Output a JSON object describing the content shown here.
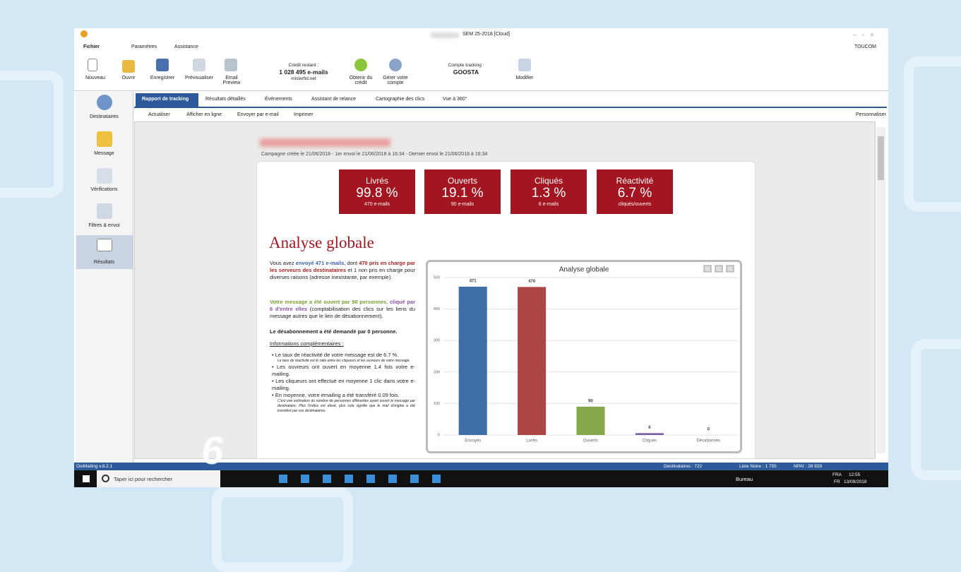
{
  "window": {
    "title": "SEM 25-2018 [Cloud]"
  },
  "menu": [
    "Fichier",
    "Paramètres",
    "Assistance"
  ],
  "user": "TOUCOM",
  "ribbon": {
    "buttons": [
      "Nouveau",
      "Ouvrir",
      "Enregistrer",
      "Prévisualiser",
      "Email Preview"
    ],
    "credit_label": "Crédit restant :",
    "credit_value": "1 028 495 e-mails",
    "credit_account": "misterfid.net",
    "actions": [
      "Obtenir du crédit",
      "Gérer votre compte"
    ],
    "tracking_label": "Compte tracking :",
    "tracking_value": "GOOSTA",
    "modify": "Modifier"
  },
  "sidebar": [
    "Destinataires",
    "Message",
    "Vérifications",
    "Filtres & envoi",
    "Résultats"
  ],
  "tabs": [
    "Rapport de tracking",
    "Résultats détaillés",
    "Événements",
    "Assistant de relance",
    "Cartographie des clics",
    "Vue à 360°"
  ],
  "toolbar": [
    "Actualiser",
    "Afficher en ligne",
    "Envoyer par e-mail",
    "Imprimer"
  ],
  "customize": "Personnaliser",
  "campaign_info": "Campagne créée le 21/06/2018 - 1er envoi le 21/06/2018 à 16:34 - Dernier envoi le 21/06/2018 à 16:34",
  "kpis": [
    {
      "label": "Livrés",
      "value": "99.8 %",
      "detail": "470 e-mails"
    },
    {
      "label": "Ouverts",
      "value": "19.1 %",
      "detail": "90 e-mails"
    },
    {
      "label": "Cliqués",
      "value": "1.3 %",
      "detail": "6 e-mails"
    },
    {
      "label": "Réactivité",
      "value": "6.7 %",
      "detail": "cliqués/ouverts"
    }
  ],
  "heading": "Analyse globale",
  "paragraphs": [
    [
      "Vous avez ",
      "envoyé 471 e-mails",
      ", dont ",
      "470 pris en charge par les serveurs des destinataires",
      " et 1 non pris en charge pour diverses raisons (adresse inexistante, par exemple)."
    ],
    [
      "Votre message a été ouvert par 90 personnes",
      ", ",
      "cliqué par 6 d'entre elles",
      " (comptabilisation des clics sur les liens du message autres que le lien de désabonnement)."
    ],
    [
      "Le désabonnement a été demandé par 0 personne."
    ]
  ],
  "info_title": "Informations complémentaires :",
  "bullets": [
    {
      "text": "Le taux de réactivité de votre message est de 6.7 %.",
      "note": "Le taux de réactivité est le ratio entre les cliqueurs et les ouvreurs de votre message."
    },
    {
      "text": "Les ouvreurs ont ouvert en moyenne 1.4 fois votre e-mailing."
    },
    {
      "text": "Les cliqueurs ont effectué en moyenne 1 clic dans votre e-mailing."
    },
    {
      "text": "En moyenne, votre emailing a été transféré 0.09 fois.",
      "note": "C'est une estimation du nombre de personnes différentes ayant ouvert le message par destinataire. Plus l'indice est élevé, plus cela signifie que le mail d'origine a été transféré par vos destinataires."
    }
  ],
  "chart_data": {
    "type": "bar",
    "title": "Analyse globale",
    "categories": [
      "Envoyés",
      "Livrés",
      "Ouverts",
      "Cliqués",
      "Désabonnés"
    ],
    "values": [
      471,
      470,
      90,
      6,
      0
    ],
    "colors": [
      "#3d6ea8",
      "#ad4545",
      "#87a84a",
      "#7a62a3",
      "#4aa0b8"
    ],
    "ylim": [
      0,
      500
    ],
    "yticks": [
      0,
      100,
      200,
      300,
      400,
      500
    ],
    "grid": true
  },
  "status": {
    "version": "OxiMailing v.8.2.1",
    "recipients": "Destinataires : 722",
    "blacklist": "Liste Noire : 1 755",
    "npai": "NPAI : 28 929"
  },
  "taskbar": {
    "search": "Taper ici pour rechercher",
    "desktop": "Bureau",
    "lang1": "FRA",
    "lang2": "FR",
    "time": "12:55",
    "date": "13/09/2018"
  },
  "overlay": "6"
}
